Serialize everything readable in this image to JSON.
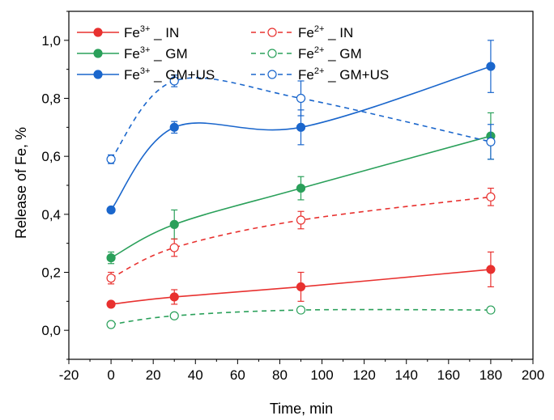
{
  "chart_data": {
    "type": "line",
    "xlabel": "Time, min",
    "ylabel": "Release of Fe, %",
    "xlim": [
      -20,
      200
    ],
    "ylim": [
      -0.1,
      1.1
    ],
    "xticks": [
      -20,
      0,
      20,
      40,
      60,
      80,
      100,
      120,
      140,
      160,
      180,
      200
    ],
    "yticks": [
      0.0,
      0.2,
      0.4,
      0.6,
      0.8,
      1.0
    ],
    "ytick_labels": [
      "0,0",
      "0,2",
      "0,4",
      "0,6",
      "0,8",
      "1,0"
    ],
    "x": [
      0,
      30,
      90,
      180
    ],
    "series": [
      {
        "name_base": "Fe",
        "name_sup": "3+",
        "name_rest": " _ IN",
        "color": "#e8312f",
        "marker": "filled",
        "line": "solid",
        "values": [
          0.09,
          0.115,
          0.15,
          0.21
        ],
        "errors": [
          0.0,
          0.025,
          0.05,
          0.06
        ]
      },
      {
        "name_base": "Fe",
        "name_sup": "3+",
        "name_rest": " _ GM",
        "color": "#2aa05a",
        "marker": "filled",
        "line": "solid",
        "values": [
          0.25,
          0.365,
          0.49,
          0.67
        ],
        "errors": [
          0.02,
          0.05,
          0.04,
          0.08
        ]
      },
      {
        "name_base": "Fe",
        "name_sup": "3+",
        "name_rest": " _ GM+US",
        "color": "#1a66cc",
        "marker": "filled",
        "line": "solid",
        "values": [
          0.415,
          0.7,
          0.7,
          0.91
        ],
        "errors": [
          0.0,
          0.02,
          0.06,
          0.09
        ]
      },
      {
        "name_base": "Fe",
        "name_sup": "2+",
        "name_rest": " _ IN",
        "color": "#e8312f",
        "marker": "open",
        "line": "dashed",
        "values": [
          0.18,
          0.285,
          0.38,
          0.46
        ],
        "errors": [
          0.02,
          0.03,
          0.03,
          0.03
        ]
      },
      {
        "name_base": "Fe",
        "name_sup": "2+",
        "name_rest": " _ GM",
        "color": "#2aa05a",
        "marker": "open",
        "line": "dashed",
        "values": [
          0.02,
          0.05,
          0.07,
          0.07
        ],
        "errors": [
          0.0,
          0.0,
          0.0,
          0.0
        ]
      },
      {
        "name_base": "Fe",
        "name_sup": "2+",
        "name_rest": " _ GM+US",
        "color": "#1a66cc",
        "marker": "open",
        "line": "dashed",
        "values": [
          0.59,
          0.86,
          0.8,
          0.65
        ],
        "errors": [
          0.015,
          0.02,
          0.06,
          0.06
        ]
      }
    ],
    "grid": false,
    "legend": "top-left"
  }
}
